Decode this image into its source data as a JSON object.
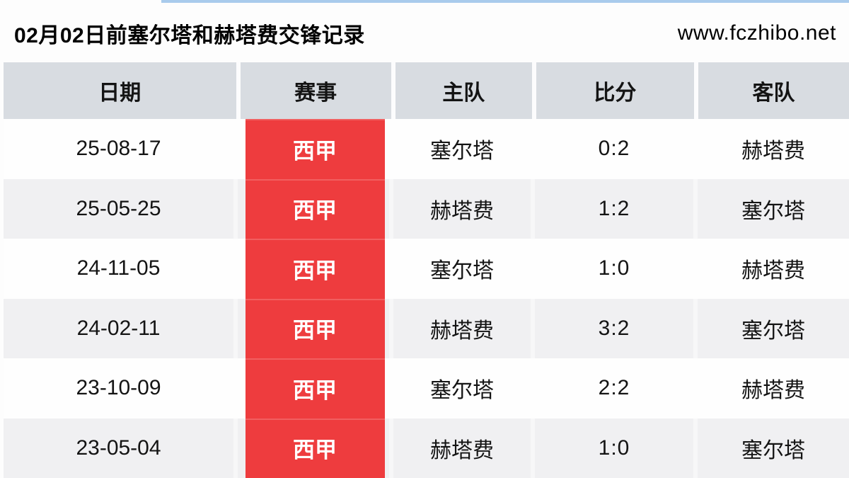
{
  "page": {
    "title": "02月02日前塞尔塔和赫塔费交锋记录",
    "site": "www.fczhibo.net"
  },
  "table": {
    "headers": [
      "日期",
      "赛事",
      "主队",
      "比分",
      "客队"
    ],
    "rows": [
      {
        "date": "25-08-17",
        "competition": "西甲",
        "home": "塞尔塔",
        "score": "0:2",
        "away": "赫塔费"
      },
      {
        "date": "25-05-25",
        "competition": "西甲",
        "home": "赫塔费",
        "score": "1:2",
        "away": "塞尔塔"
      },
      {
        "date": "24-11-05",
        "competition": "西甲",
        "home": "塞尔塔",
        "score": "1:0",
        "away": "赫塔费"
      },
      {
        "date": "24-02-11",
        "competition": "西甲",
        "home": "赫塔费",
        "score": "3:2",
        "away": "塞尔塔"
      },
      {
        "date": "23-10-09",
        "competition": "西甲",
        "home": "塞尔塔",
        "score": "2:2",
        "away": "赫塔费"
      },
      {
        "date": "23-05-04",
        "competition": "西甲",
        "home": "赫塔费",
        "score": "1:0",
        "away": "塞尔塔"
      }
    ]
  },
  "colors": {
    "accent_red": "#ee3c3e",
    "header_bg": "#d8dce1",
    "row_alt_bg": "#f0f0f2",
    "row_bg": "#fefefe",
    "top_line_blue": "#a9cbec",
    "text": "#141414"
  }
}
